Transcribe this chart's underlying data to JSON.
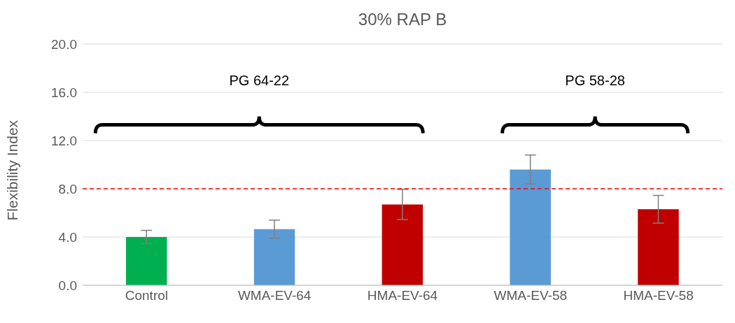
{
  "chart_data": {
    "type": "bar",
    "title": "30% RAP B",
    "ylabel": "Flexibility Index",
    "categories": [
      "Control",
      "WMA-EV-64",
      "HMA-EV-64",
      "WMA-EV-58",
      "HMA-EV-58"
    ],
    "values": [
      4.0,
      4.65,
      6.7,
      9.6,
      6.3
    ],
    "errors": [
      0.55,
      0.75,
      1.25,
      1.2,
      1.15
    ],
    "colors": [
      "#00b050",
      "#5b9bd5",
      "#c00000",
      "#5b9bd5",
      "#c00000"
    ],
    "ylim": [
      0,
      20
    ],
    "yticks": [
      {
        "value": 0,
        "label": "0.0"
      },
      {
        "value": 4,
        "label": "4.0"
      },
      {
        "value": 8,
        "label": "8.0"
      },
      {
        "value": 12,
        "label": "12.0"
      },
      {
        "value": 16,
        "label": "16.0"
      },
      {
        "value": 20,
        "label": "20.0"
      }
    ],
    "grid": "y",
    "ref_lines": [
      {
        "axis": "y",
        "value": 8,
        "color": "#ff0000",
        "line_style": "dashed"
      }
    ],
    "annotations": [
      "PG 64-22",
      "PG 58-28"
    ]
  }
}
